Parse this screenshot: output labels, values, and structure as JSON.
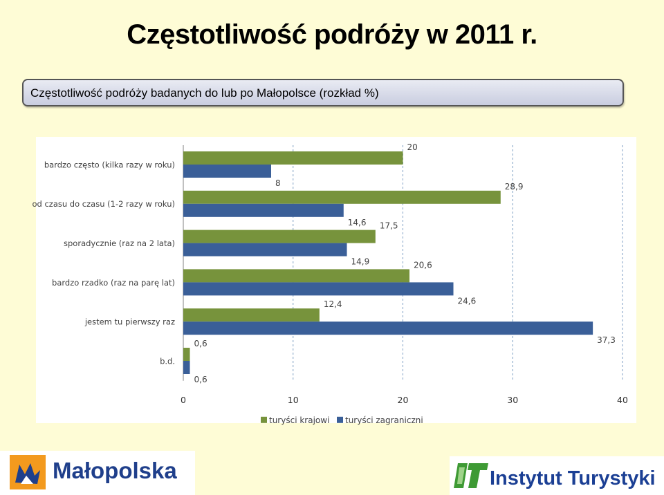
{
  "slide": {
    "title": "Częstotliwość podróży w 2011 r.",
    "subtitle": "Częstotliwość podróży badanych do lub po Małopolsce (rozkład %)"
  },
  "chart_data": {
    "type": "bar",
    "orientation": "horizontal",
    "categories": [
      "bardzo często (kilka razy w roku)",
      "od czasu do czasu (1-2 razy w roku)",
      "sporadycznie (raz na 2 lata)",
      "bardzo rzadko (raz na parę lat)",
      "jestem tu pierwszy raz",
      "b.d."
    ],
    "series": [
      {
        "name": "turyści krajowi",
        "color": "#77933c",
        "values": [
          20,
          28.9,
          17.5,
          20.6,
          12.4,
          0.6
        ]
      },
      {
        "name": "turyści zagraniczni",
        "color": "#3a5f98",
        "values": [
          8,
          14.6,
          14.9,
          24.6,
          37.3,
          0.6
        ]
      }
    ],
    "value_labels": {
      "turyści krajowi": [
        "20",
        "28,9",
        "17,5",
        "20,6",
        "12,4",
        "0,6"
      ],
      "turyści zagraniczni": [
        "8",
        "14,6",
        "14,9",
        "24,6",
        "37,3",
        "0,6"
      ]
    },
    "xlim": [
      0,
      40
    ],
    "xticks": [
      0,
      10,
      20,
      30,
      40
    ],
    "xtick_labels": [
      "0",
      "10",
      "20",
      "30",
      "40"
    ],
    "grid": "vertical dashed",
    "legend_position": "bottom"
  },
  "logos": {
    "left_text": "Małopolska",
    "left_icon": "malopolska-emblem-icon",
    "right_text": "Instytut Turystyki",
    "right_icon": "it-logo-icon"
  }
}
